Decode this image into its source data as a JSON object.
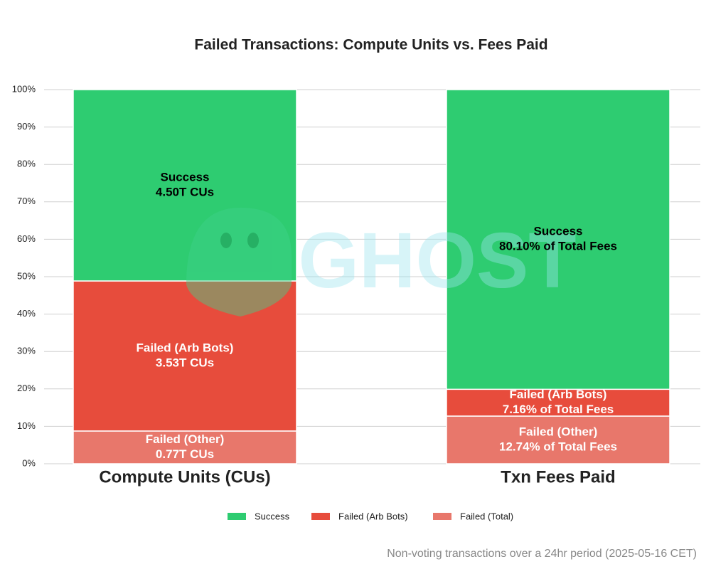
{
  "chart_data": {
    "type": "stacked_bar_percent",
    "title": "Failed Transactions: Compute Units vs. Fees Paid",
    "footnote": "Non-voting transactions over a 24hr period (2025-05-16 CET)",
    "watermark": "GHOST",
    "categories": [
      "Compute Units (CUs)",
      "Txn Fees Paid"
    ],
    "series": [
      {
        "name": "Failed (Total)",
        "color": "#e8776b",
        "values": [
          8.75,
          12.74
        ],
        "labels": [
          [
            "Failed (Other)",
            "0.77T CUs"
          ],
          [
            "Failed (Other)",
            "12.74% of Total Fees"
          ]
        ]
      },
      {
        "name": "Failed (Arb Bots)",
        "color": "#e74c3c",
        "values": [
          40.11,
          7.16
        ],
        "labels": [
          [
            "Failed (Arb Bots)",
            "3.53T CUs"
          ],
          [
            "Failed (Arb Bots)",
            "7.16% of Total Fees"
          ]
        ]
      },
      {
        "name": "Success",
        "color": "#2ecc71",
        "values": [
          51.14,
          80.1
        ],
        "labels": [
          [
            "Success",
            "4.50T CUs"
          ],
          [
            "Success",
            "80.10% of Total Fees"
          ]
        ]
      }
    ],
    "legend_order": [
      2,
      1,
      0
    ],
    "ylim": [
      0,
      100
    ],
    "yticks": [
      {
        "value": 0,
        "label": "0%"
      },
      {
        "value": 10,
        "label": "10%"
      },
      {
        "value": 20,
        "label": "20%"
      },
      {
        "value": 30,
        "label": "30%"
      },
      {
        "value": 40,
        "label": "40%"
      },
      {
        "value": 50,
        "label": "50%"
      },
      {
        "value": 60,
        "label": "60%"
      },
      {
        "value": 70,
        "label": "70%"
      },
      {
        "value": 80,
        "label": "80%"
      },
      {
        "value": 90,
        "label": "90%"
      },
      {
        "value": 100,
        "label": "100%"
      }
    ],
    "grid": true
  }
}
